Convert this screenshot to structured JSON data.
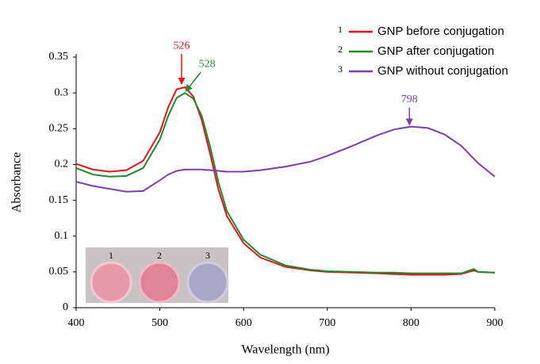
{
  "chart_data": {
    "type": "line",
    "x_label": "Wavelength (nm)",
    "y_label": "Absorbance",
    "x": [
      400,
      420,
      440,
      460,
      480,
      500,
      510,
      520,
      530,
      540,
      550,
      560,
      570,
      580,
      600,
      620,
      650,
      680,
      700,
      730,
      760,
      780,
      800,
      820,
      840,
      860,
      875,
      880,
      900
    ],
    "series": [
      {
        "number": "1",
        "name": "GNP before conjugation",
        "color": "#e8141a",
        "values": [
          0.201,
          0.193,
          0.19,
          0.192,
          0.205,
          0.245,
          0.28,
          0.305,
          0.308,
          0.295,
          0.262,
          0.215,
          0.165,
          0.128,
          0.09,
          0.07,
          0.057,
          0.052,
          0.05,
          0.049,
          0.048,
          0.047,
          0.046,
          0.046,
          0.046,
          0.047,
          0.052,
          0.05,
          0.049
        ]
      },
      {
        "number": "2",
        "name": "GNP after conjugation",
        "color": "#1e8a2a",
        "values": [
          0.195,
          0.186,
          0.183,
          0.184,
          0.195,
          0.235,
          0.268,
          0.293,
          0.3,
          0.292,
          0.268,
          0.225,
          0.175,
          0.135,
          0.095,
          0.074,
          0.059,
          0.053,
          0.051,
          0.05,
          0.049,
          0.049,
          0.048,
          0.048,
          0.048,
          0.048,
          0.054,
          0.05,
          0.049
        ]
      },
      {
        "number": "3",
        "name": "GNP without conjugation",
        "color": "#7b3fb3",
        "values": [
          0.176,
          0.17,
          0.166,
          0.162,
          0.163,
          0.178,
          0.186,
          0.191,
          0.193,
          0.193,
          0.193,
          0.192,
          0.191,
          0.19,
          0.19,
          0.192,
          0.197,
          0.204,
          0.212,
          0.226,
          0.241,
          0.249,
          0.253,
          0.251,
          0.242,
          0.226,
          0.208,
          0.202,
          0.183
        ]
      }
    ],
    "annotations": [
      {
        "text": "526",
        "x": 526,
        "y": 0.31,
        "color": "#e8141a"
      },
      {
        "text": "528",
        "x": 528,
        "y": 0.3,
        "color": "#1e8a2a"
      },
      {
        "text": "798",
        "x": 798,
        "y": 0.253,
        "color": "#7b3fb3"
      }
    ],
    "inset_labels": [
      "1",
      "2",
      "3"
    ],
    "xlim": [
      400,
      900
    ],
    "xticks": [
      400,
      500,
      600,
      700,
      800,
      900
    ],
    "ylim": [
      0,
      0.35
    ],
    "yticks": [
      0,
      0.05,
      0.1,
      0.15,
      0.2,
      0.25,
      0.3,
      0.35
    ],
    "legend": "top-right",
    "grid": false
  }
}
